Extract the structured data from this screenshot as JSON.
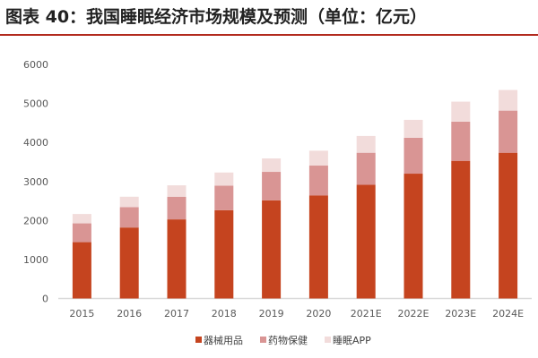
{
  "chart_data": {
    "type": "bar",
    "stacked": true,
    "title": "图表 40：我国睡眠经济市场规模及预测（单位：亿元）",
    "categories": [
      "2015",
      "2016",
      "2017",
      "2018",
      "2019",
      "2020",
      "2021E",
      "2022E",
      "2023E",
      "2024E"
    ],
    "series": [
      {
        "name": "器械用品",
        "color": "#c5441f",
        "values": [
          1444,
          1820,
          2028,
          2264,
          2517,
          2639,
          2915,
          3200,
          3529,
          3736
        ]
      },
      {
        "name": "药物保健",
        "color": "#d99594",
        "values": [
          482,
          520,
          581,
          628,
          729,
          768,
          821,
          920,
          1004,
          1080
        ]
      },
      {
        "name": "睡眠APP",
        "color": "#f2dcdb",
        "values": [
          240,
          269,
          292,
          338,
          345,
          382,
          430,
          459,
          513,
          529
        ]
      }
    ],
    "ylim": [
      0,
      6000
    ],
    "yticks": [
      "0",
      "1000",
      "2000",
      "3000",
      "4000",
      "5000",
      "6000"
    ],
    "grid": false,
    "legend": "bottom"
  }
}
